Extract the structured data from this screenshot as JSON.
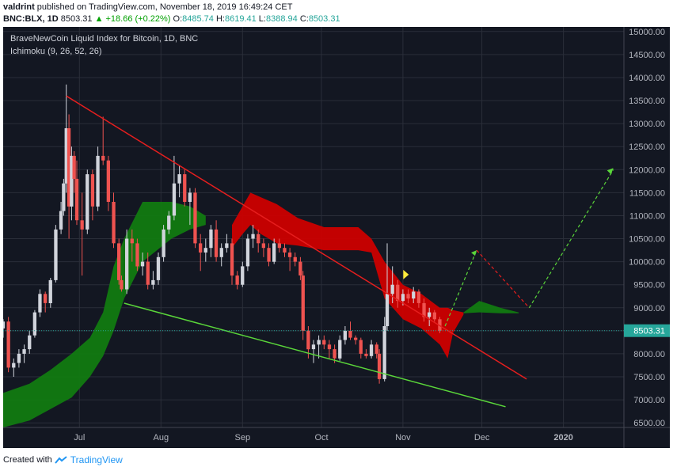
{
  "header": {
    "author": "valdrint",
    "published_text": "published on TradingView.com, November 18, 2019 16:49:24 CET",
    "symbol": "BNC:BLX, 1D",
    "last": "8503.31",
    "change": "▲ +18.66 (+0.22%)",
    "o_label": "O:",
    "o_value": "8485.74",
    "h_label": "H:",
    "h_value": "8619.41",
    "l_label": "L:",
    "l_value": "8388.94",
    "c_label": "C:",
    "c_value": "8503.31"
  },
  "footer": {
    "created_with": "Created with",
    "brand": "TradingView"
  },
  "chart_data": {
    "type": "candlestick",
    "title": "BraveNewCoin Liquid Index for Bitcoin, 1D, BNC",
    "indicator": "Ichimoku (9, 26, 52, 26)",
    "x_ticks": [
      "Jul",
      "Aug",
      "Sep",
      "Oct",
      "Nov",
      "Dec",
      "2020"
    ],
    "x_tick_dates": [
      "2019-07-01",
      "2019-08-01",
      "2019-09-01",
      "2019-10-01",
      "2019-11-01",
      "2019-12-01",
      "2020-01-01"
    ],
    "x_range": [
      "2019-06-02",
      "2020-01-24"
    ],
    "y_ticks": [
      6500,
      7000,
      7500,
      8000,
      8500,
      9000,
      9500,
      10000,
      10500,
      11000,
      11500,
      12000,
      12500,
      13000,
      13500,
      14000,
      14500,
      15000
    ],
    "y_tick_labels": [
      "6500.00",
      "7000.00",
      "7500.00",
      "8000.00",
      "8500.00",
      "9000.00",
      "9500.00",
      "10000.00",
      "10500.00",
      "11000.00",
      "11500.00",
      "12000.00",
      "12500.00",
      "13000.00",
      "13500.00",
      "14000.00",
      "14500.00",
      "15000.00"
    ],
    "y_range": [
      6400,
      15100
    ],
    "last_price": 8503.31,
    "last_price_label": "8503.31",
    "colors": {
      "background": "#131722",
      "up": "#d1d4dc",
      "down": "#ef5350",
      "kumo_bull": "#117a11",
      "kumo_bear": "#cc0000",
      "resistance": "#e61e1e",
      "support": "#5ad63a",
      "projection": "#5ad63a",
      "projection_down": "#e61e1e",
      "price_line": "#26a69a",
      "marker": "#ffeb3b"
    },
    "candles_ohlc": [
      [
        "2019-06-02",
        8550,
        8750,
        8350,
        8700
      ],
      [
        "2019-06-04",
        8700,
        8800,
        7600,
        7700
      ],
      [
        "2019-06-06",
        7700,
        7900,
        7500,
        7800
      ],
      [
        "2019-06-08",
        7800,
        8100,
        7700,
        8000
      ],
      [
        "2019-06-10",
        8000,
        8200,
        7800,
        8100
      ],
      [
        "2019-06-12",
        8100,
        8500,
        8000,
        8400
      ],
      [
        "2019-06-14",
        8400,
        8950,
        8350,
        8900
      ],
      [
        "2019-06-16",
        8900,
        9400,
        8800,
        9300
      ],
      [
        "2019-06-18",
        9300,
        9350,
        8900,
        9100
      ],
      [
        "2019-06-20",
        9100,
        9650,
        9000,
        9600
      ],
      [
        "2019-06-22",
        9600,
        10800,
        9550,
        10700
      ],
      [
        "2019-06-24",
        10700,
        11300,
        10600,
        11100
      ],
      [
        "2019-06-25",
        11100,
        11800,
        11000,
        11700
      ],
      [
        "2019-06-26",
        11700,
        13850,
        11500,
        12900
      ],
      [
        "2019-06-27",
        12900,
        13200,
        10500,
        11200
      ],
      [
        "2019-06-28",
        11200,
        12500,
        10900,
        12300
      ],
      [
        "2019-06-29",
        12300,
        12400,
        11500,
        11800
      ],
      [
        "2019-06-30",
        11800,
        12200,
        10800,
        10900
      ],
      [
        "2019-07-02",
        10900,
        11500,
        9700,
        10700
      ],
      [
        "2019-07-04",
        10700,
        12000,
        10600,
        11900
      ],
      [
        "2019-07-06",
        11900,
        12000,
        10900,
        11200
      ],
      [
        "2019-07-08",
        11200,
        12500,
        11100,
        12300
      ],
      [
        "2019-07-10",
        12300,
        13150,
        12100,
        12200
      ],
      [
        "2019-07-12",
        12200,
        12300,
        11100,
        11300
      ],
      [
        "2019-07-14",
        11300,
        11500,
        10300,
        10400
      ],
      [
        "2019-07-16",
        10400,
        10500,
        9500,
        9600
      ],
      [
        "2019-07-17",
        9600,
        9700,
        9350,
        9400
      ],
      [
        "2019-07-19",
        9400,
        10700,
        9300,
        10500
      ],
      [
        "2019-07-21",
        10500,
        10700,
        10000,
        10400
      ],
      [
        "2019-07-23",
        10400,
        10500,
        9800,
        9900
      ],
      [
        "2019-07-25",
        9900,
        10200,
        9700,
        10000
      ],
      [
        "2019-07-27",
        10000,
        10200,
        9400,
        9500
      ],
      [
        "2019-07-29",
        9500,
        9800,
        9400,
        9600
      ],
      [
        "2019-07-31",
        9600,
        10200,
        9500,
        10100
      ],
      [
        "2019-08-02",
        10100,
        10800,
        10000,
        10700
      ],
      [
        "2019-08-04",
        10700,
        11100,
        10600,
        11000
      ],
      [
        "2019-08-06",
        11000,
        12300,
        10900,
        11700
      ],
      [
        "2019-08-08",
        11700,
        12100,
        11400,
        11900
      ],
      [
        "2019-08-10",
        11900,
        12000,
        11200,
        11300
      ],
      [
        "2019-08-12",
        11300,
        11600,
        10800,
        11500
      ],
      [
        "2019-08-14",
        11500,
        11600,
        10300,
        10400
      ],
      [
        "2019-08-16",
        10400,
        10600,
        9800,
        10200
      ],
      [
        "2019-08-18",
        10200,
        10500,
        10000,
        10300
      ],
      [
        "2019-08-20",
        10300,
        10800,
        10100,
        10700
      ],
      [
        "2019-08-22",
        10700,
        10900,
        10000,
        10100
      ],
      [
        "2019-08-24",
        10100,
        10400,
        9900,
        10300
      ],
      [
        "2019-08-26",
        10300,
        10600,
        10200,
        10400
      ],
      [
        "2019-08-28",
        10400,
        10500,
        9500,
        9700
      ],
      [
        "2019-08-30",
        9700,
        9800,
        9400,
        9500
      ],
      [
        "2019-09-01",
        9500,
        10000,
        9450,
        9900
      ],
      [
        "2019-09-03",
        9900,
        10600,
        9800,
        10500
      ],
      [
        "2019-09-05",
        10500,
        10800,
        10300,
        10600
      ],
      [
        "2019-09-07",
        10600,
        10700,
        10200,
        10400
      ],
      [
        "2019-09-09",
        10400,
        10500,
        10100,
        10300
      ],
      [
        "2019-09-11",
        10300,
        10400,
        9900,
        10000
      ],
      [
        "2019-09-13",
        10000,
        10500,
        9950,
        10400
      ],
      [
        "2019-09-15",
        10400,
        10500,
        10200,
        10300
      ],
      [
        "2019-09-17",
        10300,
        10400,
        10100,
        10200
      ],
      [
        "2019-09-19",
        10200,
        10300,
        9800,
        10100
      ],
      [
        "2019-09-21",
        10100,
        10200,
        9900,
        10000
      ],
      [
        "2019-09-23",
        10000,
        10100,
        9600,
        9700
      ],
      [
        "2019-09-24",
        9700,
        9800,
        8300,
        8500
      ],
      [
        "2019-09-26",
        8500,
        8600,
        7900,
        8100
      ],
      [
        "2019-09-28",
        8100,
        8300,
        7800,
        8200
      ],
      [
        "2019-09-30",
        8200,
        8400,
        7900,
        8300
      ],
      [
        "2019-10-02",
        8300,
        8400,
        8100,
        8200
      ],
      [
        "2019-10-04",
        8200,
        8300,
        7900,
        8100
      ],
      [
        "2019-10-06",
        8100,
        8200,
        7800,
        7900
      ],
      [
        "2019-10-08",
        7900,
        8400,
        7850,
        8300
      ],
      [
        "2019-10-10",
        8300,
        8600,
        8200,
        8500
      ],
      [
        "2019-10-12",
        8500,
        8700,
        8300,
        8350
      ],
      [
        "2019-10-14",
        8350,
        8400,
        8200,
        8300
      ],
      [
        "2019-10-16",
        8300,
        8350,
        7900,
        8000
      ],
      [
        "2019-10-18",
        8000,
        8100,
        7900,
        7950
      ],
      [
        "2019-10-20",
        7950,
        8300,
        7900,
        8200
      ],
      [
        "2019-10-22",
        8200,
        8250,
        7900,
        8000
      ],
      [
        "2019-10-23",
        8000,
        8100,
        7350,
        7450
      ],
      [
        "2019-10-25",
        7450,
        8800,
        7400,
        8600
      ],
      [
        "2019-10-26",
        8600,
        10400,
        8500,
        9300
      ],
      [
        "2019-10-28",
        9300,
        9900,
        9100,
        9500
      ],
      [
        "2019-10-30",
        9500,
        9600,
        9000,
        9150
      ],
      [
        "2019-11-01",
        9150,
        9400,
        9050,
        9300
      ],
      [
        "2019-11-03",
        9300,
        9400,
        9100,
        9200
      ],
      [
        "2019-11-05",
        9200,
        9450,
        9100,
        9350
      ],
      [
        "2019-11-07",
        9350,
        9400,
        9000,
        9100
      ],
      [
        "2019-11-09",
        9100,
        9200,
        8700,
        8800
      ],
      [
        "2019-11-11",
        8800,
        9000,
        8600,
        8900
      ],
      [
        "2019-11-13",
        8900,
        8950,
        8700,
        8750
      ],
      [
        "2019-11-15",
        8750,
        8800,
        8450,
        8500
      ]
    ],
    "ichimoku_cloud": [
      {
        "start": "2019-06-02",
        "end": "2019-07-18",
        "color": "kumo_bull",
        "top": [
          [
            "2019-06-02",
            7150
          ],
          [
            "2019-06-12",
            7350
          ],
          [
            "2019-06-20",
            7650
          ],
          [
            "2019-06-28",
            8000
          ],
          [
            "2019-07-05",
            8350
          ],
          [
            "2019-07-10",
            8900
          ],
          [
            "2019-07-14",
            9900
          ],
          [
            "2019-07-18",
            10500
          ]
        ],
        "bottom": [
          [
            "2019-06-02",
            6400
          ],
          [
            "2019-06-12",
            6550
          ],
          [
            "2019-06-20",
            6800
          ],
          [
            "2019-06-28",
            7050
          ],
          [
            "2019-07-05",
            7500
          ],
          [
            "2019-07-10",
            7950
          ],
          [
            "2019-07-14",
            8500
          ],
          [
            "2019-07-18",
            9200
          ]
        ]
      },
      {
        "start": "2019-07-18",
        "end": "2019-08-18",
        "color": "kumo_bull",
        "top": [
          [
            "2019-07-18",
            10500
          ],
          [
            "2019-07-25",
            11300
          ],
          [
            "2019-08-05",
            11300
          ],
          [
            "2019-08-12",
            11200
          ],
          [
            "2019-08-18",
            11000
          ]
        ],
        "bottom": [
          [
            "2019-07-18",
            9200
          ],
          [
            "2019-07-25",
            10000
          ],
          [
            "2019-08-05",
            10500
          ],
          [
            "2019-08-12",
            10700
          ],
          [
            "2019-08-18",
            10800
          ]
        ]
      },
      {
        "start": "2019-08-28",
        "end": "2019-11-15",
        "color": "kumo_bear",
        "top": [
          [
            "2019-08-28",
            10800
          ],
          [
            "2019-09-01",
            11200
          ],
          [
            "2019-09-04",
            11500
          ],
          [
            "2019-09-08",
            11400
          ],
          [
            "2019-09-14",
            11250
          ],
          [
            "2019-09-22",
            10950
          ],
          [
            "2019-10-02",
            10750
          ],
          [
            "2019-10-15",
            10750
          ],
          [
            "2019-10-20",
            10500
          ],
          [
            "2019-10-25",
            10000
          ],
          [
            "2019-11-01",
            9500
          ],
          [
            "2019-11-08",
            9300
          ],
          [
            "2019-11-15",
            9000
          ]
        ],
        "bottom": [
          [
            "2019-08-28",
            10300
          ],
          [
            "2019-09-01",
            10600
          ],
          [
            "2019-09-04",
            10800
          ],
          [
            "2019-09-08",
            10600
          ],
          [
            "2019-09-14",
            10400
          ],
          [
            "2019-09-22",
            10350
          ],
          [
            "2019-10-02",
            10250
          ],
          [
            "2019-10-15",
            10250
          ],
          [
            "2019-10-20",
            10200
          ],
          [
            "2019-10-25",
            9200
          ],
          [
            "2019-11-01",
            8750
          ],
          [
            "2019-11-08",
            8550
          ],
          [
            "2019-11-15",
            8200
          ]
        ]
      },
      {
        "start": "2019-11-15",
        "end": "2019-11-24",
        "color": "kumo_bear",
        "top": [
          [
            "2019-11-15",
            9000
          ],
          [
            "2019-11-18",
            9000
          ],
          [
            "2019-11-20",
            8950
          ],
          [
            "2019-11-24",
            8900
          ]
        ],
        "bottom": [
          [
            "2019-11-15",
            8200
          ],
          [
            "2019-11-18",
            7900
          ],
          [
            "2019-11-20",
            8450
          ],
          [
            "2019-11-24",
            8850
          ]
        ]
      },
      {
        "start": "2019-11-24",
        "end": "2019-12-15",
        "color": "kumo_bull",
        "top": [
          [
            "2019-11-24",
            8900
          ],
          [
            "2019-11-30",
            9150
          ],
          [
            "2019-12-08",
            9000
          ],
          [
            "2019-12-15",
            8900
          ]
        ],
        "bottom": [
          [
            "2019-11-24",
            8880
          ],
          [
            "2019-11-30",
            8900
          ],
          [
            "2019-12-08",
            8880
          ],
          [
            "2019-12-15",
            8880
          ]
        ]
      }
    ],
    "trendlines": [
      {
        "name": "resistance",
        "color": "resistance",
        "from": [
          "2019-06-26",
          13600
        ],
        "to": [
          "2019-12-18",
          7450
        ]
      },
      {
        "name": "support",
        "color": "support",
        "from": [
          "2019-07-18",
          9100
        ],
        "to": [
          "2019-12-10",
          6850
        ]
      }
    ],
    "projection": [
      {
        "color": "projection",
        "dash": true,
        "points": [
          [
            "2019-11-17",
            8600
          ],
          [
            "2019-11-29",
            10250
          ]
        ]
      },
      {
        "color": "projection_down",
        "dash": true,
        "points": [
          [
            "2019-11-29",
            10250
          ],
          [
            "2019-12-19",
            9000
          ]
        ]
      },
      {
        "color": "projection",
        "dash": true,
        "points": [
          [
            "2019-12-19",
            9000
          ],
          [
            "2020-01-20",
            12000
          ]
        ]
      }
    ],
    "marker": {
      "date": "2019-11-02",
      "price": 9720,
      "color": "marker"
    }
  }
}
